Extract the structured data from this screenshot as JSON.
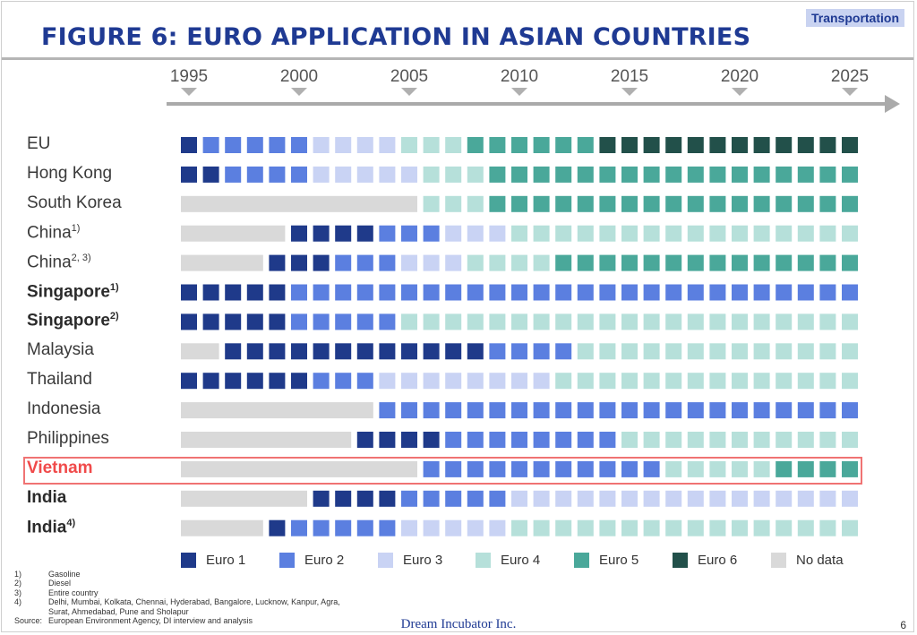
{
  "header": {
    "tag": "Transportation",
    "title": "FIGURE 6: EURO APPLICATION IN ASIAN COUNTRIES"
  },
  "chart_data": {
    "type": "heatmap",
    "year_start": 1995,
    "year_end": 2025,
    "years": [
      "1995",
      "2000",
      "2005",
      "2010",
      "2015",
      "2020",
      "2025"
    ],
    "categories": [
      "No data",
      "Euro 1",
      "Euro 2",
      "Euro 3",
      "Euro 4",
      "Euro 5",
      "Euro 6"
    ],
    "colors": {
      "No data": "#d9d9d9",
      "Euro 1": "#1f3a8a",
      "Euro 2": "#5b7fe0",
      "Euro 3": "#c9d3f4",
      "Euro 4": "#b6e0da",
      "Euro 5": "#4aa89a",
      "Euro 6": "#22504a"
    },
    "rows": [
      {
        "label": "EU",
        "sup": "",
        "style": "normal",
        "cells": [
          1,
          2,
          2,
          2,
          2,
          2,
          3,
          3,
          3,
          3,
          4,
          4,
          4,
          5,
          5,
          5,
          5,
          5,
          5,
          6,
          6,
          6,
          6,
          6,
          6,
          6,
          6,
          6,
          6,
          6,
          6
        ]
      },
      {
        "label": "Hong Kong",
        "sup": "",
        "style": "normal",
        "cells": [
          1,
          1,
          2,
          2,
          2,
          2,
          3,
          3,
          3,
          3,
          3,
          4,
          4,
          4,
          5,
          5,
          5,
          5,
          5,
          5,
          5,
          5,
          5,
          5,
          5,
          5,
          5,
          5,
          5,
          5,
          5
        ]
      },
      {
        "label": "South Korea",
        "sup": "",
        "style": "normal",
        "cells": [
          0,
          0,
          0,
          0,
          0,
          0,
          0,
          0,
          0,
          0,
          0,
          4,
          4,
          4,
          5,
          5,
          5,
          5,
          5,
          5,
          5,
          5,
          5,
          5,
          5,
          5,
          5,
          5,
          5,
          5,
          5
        ]
      },
      {
        "label": "China",
        "sup": "1)",
        "style": "normal",
        "cells": [
          0,
          0,
          0,
          0,
          0,
          1,
          1,
          1,
          1,
          2,
          2,
          2,
          3,
          3,
          3,
          4,
          4,
          4,
          4,
          4,
          4,
          4,
          4,
          4,
          4,
          4,
          4,
          4,
          4,
          4,
          4
        ]
      },
      {
        "label": "China",
        "sup": "2, 3)",
        "style": "normal",
        "cells": [
          0,
          0,
          0,
          0,
          1,
          1,
          1,
          2,
          2,
          2,
          3,
          3,
          3,
          4,
          4,
          4,
          4,
          5,
          5,
          5,
          5,
          5,
          5,
          5,
          5,
          5,
          5,
          5,
          5,
          5,
          5
        ]
      },
      {
        "label": "Singapore",
        "sup": "1)",
        "style": "bold",
        "cells": [
          1,
          1,
          1,
          1,
          1,
          2,
          2,
          2,
          2,
          2,
          2,
          2,
          2,
          2,
          2,
          2,
          2,
          2,
          2,
          2,
          2,
          2,
          2,
          2,
          2,
          2,
          2,
          2,
          2,
          2,
          2
        ]
      },
      {
        "label": "Singapore",
        "sup": "2)",
        "style": "bold",
        "cells": [
          1,
          1,
          1,
          1,
          1,
          2,
          2,
          2,
          2,
          2,
          4,
          4,
          4,
          4,
          4,
          4,
          4,
          4,
          4,
          4,
          4,
          4,
          4,
          4,
          4,
          4,
          4,
          4,
          4,
          4,
          4
        ]
      },
      {
        "label": "Malaysia",
        "sup": "",
        "style": "normal",
        "cells": [
          0,
          0,
          1,
          1,
          1,
          1,
          1,
          1,
          1,
          1,
          1,
          1,
          1,
          1,
          2,
          2,
          2,
          2,
          4,
          4,
          4,
          4,
          4,
          4,
          4,
          4,
          4,
          4,
          4,
          4,
          4
        ]
      },
      {
        "label": "Thailand",
        "sup": "",
        "style": "normal",
        "cells": [
          1,
          1,
          1,
          1,
          1,
          1,
          2,
          2,
          2,
          3,
          3,
          3,
          3,
          3,
          3,
          3,
          3,
          4,
          4,
          4,
          4,
          4,
          4,
          4,
          4,
          4,
          4,
          4,
          4,
          4,
          4
        ]
      },
      {
        "label": "Indonesia",
        "sup": "",
        "style": "normal",
        "cells": [
          0,
          0,
          0,
          0,
          0,
          0,
          0,
          0,
          0,
          2,
          2,
          2,
          2,
          2,
          2,
          2,
          2,
          2,
          2,
          2,
          2,
          2,
          2,
          2,
          2,
          2,
          2,
          2,
          2,
          2,
          2
        ]
      },
      {
        "label": "Philippines",
        "sup": "",
        "style": "normal",
        "cells": [
          0,
          0,
          0,
          0,
          0,
          0,
          0,
          0,
          1,
          1,
          1,
          1,
          2,
          2,
          2,
          2,
          2,
          2,
          2,
          2,
          4,
          4,
          4,
          4,
          4,
          4,
          4,
          4,
          4,
          4,
          4
        ]
      },
      {
        "label": "Vietnam",
        "sup": "",
        "style": "highlight",
        "cells": [
          0,
          0,
          0,
          0,
          0,
          0,
          0,
          0,
          0,
          0,
          0,
          2,
          2,
          2,
          2,
          2,
          2,
          2,
          2,
          2,
          2,
          2,
          4,
          4,
          4,
          4,
          4,
          5,
          5,
          5,
          5
        ]
      },
      {
        "label": "India",
        "sup": "",
        "style": "bold",
        "cells": [
          0,
          0,
          0,
          0,
          0,
          0,
          1,
          1,
          1,
          1,
          2,
          2,
          2,
          2,
          2,
          3,
          3,
          3,
          3,
          3,
          3,
          3,
          3,
          3,
          3,
          3,
          3,
          3,
          3,
          3,
          3
        ]
      },
      {
        "label": "India",
        "sup": "4)",
        "style": "bold",
        "cells": [
          0,
          0,
          0,
          0,
          1,
          2,
          2,
          2,
          2,
          2,
          3,
          3,
          3,
          3,
          3,
          4,
          4,
          4,
          4,
          4,
          4,
          4,
          4,
          4,
          4,
          4,
          4,
          4,
          4,
          4,
          4
        ]
      }
    ],
    "legend": [
      "Euro 1",
      "Euro 2",
      "Euro 3",
      "Euro 4",
      "Euro 5",
      "Euro 6",
      "No data"
    ]
  },
  "notes": [
    {
      "k": "1)",
      "v": "Gasoline"
    },
    {
      "k": "2)",
      "v": "Diesel"
    },
    {
      "k": "3)",
      "v": "Entire country"
    },
    {
      "k": "4)",
      "v": "Delhi, Mumbai, Kolkata, Chennai, Hyderabad, Bangalore, Lucknow, Kanpur, Agra,"
    },
    {
      "k": "",
      "v": "Surat, Ahmedabad, Pune and Sholapur"
    },
    {
      "k": "Source:",
      "v": "European Environment Agency, DI interview and analysis"
    }
  ],
  "footer": {
    "company": "Dream Incubator Inc.",
    "page": "6"
  }
}
